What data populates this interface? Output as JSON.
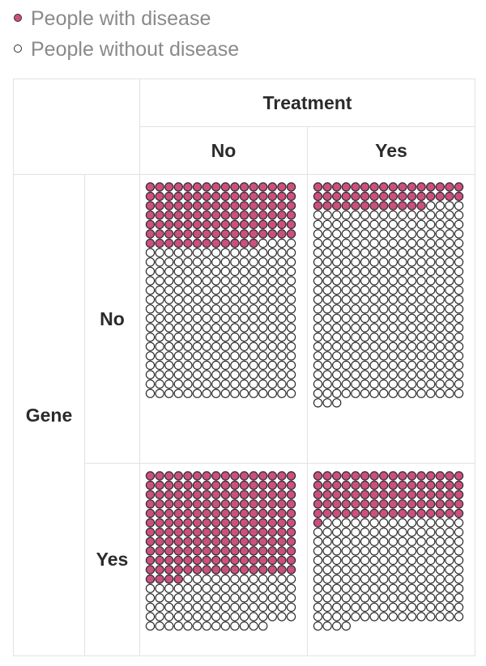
{
  "legend": {
    "with_disease": "People with disease",
    "without_disease": "People without disease"
  },
  "colors": {
    "with_disease": "#cc4f7e",
    "without_disease": "#ffffff",
    "dot_stroke": "#2e2e2e"
  },
  "table": {
    "column_group": "Treatment",
    "columns": [
      "No",
      "Yes"
    ],
    "row_group": "Gene",
    "rows": [
      "No",
      "Yes"
    ]
  },
  "chart_data": {
    "type": "table",
    "unit": "one circle = one person",
    "columns_per_panel": 16,
    "panels": [
      {
        "gene": "No",
        "treatment": "No",
        "with_disease": 108,
        "without_disease": 260
      },
      {
        "gene": "No",
        "treatment": "Yes",
        "with_disease": 44,
        "without_disease": 327
      },
      {
        "gene": "Yes",
        "treatment": "No",
        "with_disease": 180,
        "without_disease": 89
      },
      {
        "gene": "Yes",
        "treatment": "Yes",
        "with_disease": 81,
        "without_disease": 179
      }
    ]
  }
}
